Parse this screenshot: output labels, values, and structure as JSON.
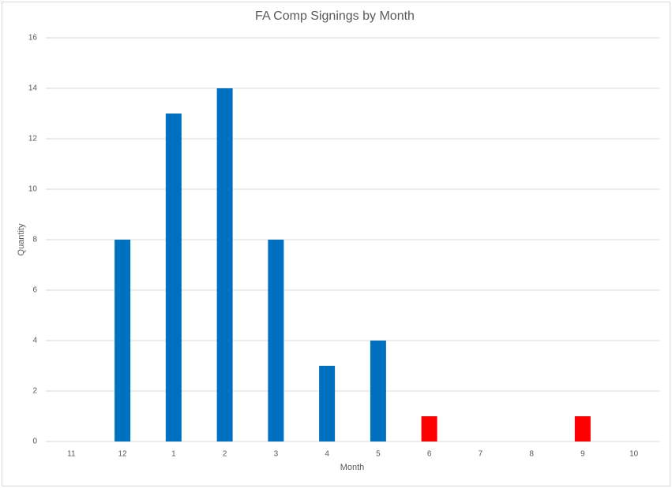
{
  "chart_data": {
    "type": "bar",
    "title": "FA Comp Signings by Month",
    "x_label": "Month",
    "y_label": "Quantity",
    "categories": [
      "11",
      "12",
      "1",
      "2",
      "3",
      "4",
      "5",
      "6",
      "7",
      "8",
      "9",
      "10"
    ],
    "values": [
      0,
      8,
      13,
      14,
      8,
      3,
      4,
      1,
      0,
      0,
      1,
      0
    ],
    "colors": [
      "#0070c0",
      "#0070c0",
      "#0070c0",
      "#0070c0",
      "#0070c0",
      "#0070c0",
      "#0070c0",
      "#ff0000",
      "#0070c0",
      "#0070c0",
      "#ff0000",
      "#0070c0"
    ],
    "ylim": [
      0,
      16
    ],
    "yticks": [
      0,
      2,
      4,
      6,
      8,
      10,
      12,
      14,
      16
    ],
    "grid": true
  }
}
